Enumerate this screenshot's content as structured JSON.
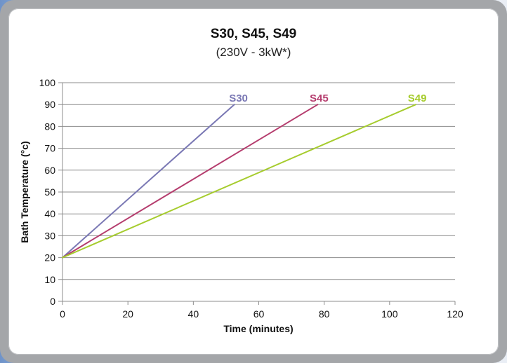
{
  "colors": {
    "frame": "#a4a6a9",
    "grid": "#8c8c8c",
    "s30": "#7a78b4",
    "s45": "#b53d6e",
    "s49": "#a6cc2e"
  },
  "chart_data": {
    "type": "line",
    "title": "S30, S45, S49",
    "subtitle": "(230V - 3kW*)",
    "xlabel": "Time (minutes)",
    "ylabel": "Bath Temperature (°c)",
    "xlim": [
      0,
      120
    ],
    "ylim": [
      0,
      100
    ],
    "x_ticks": [
      "0",
      "20",
      "40",
      "60",
      "80",
      "100",
      "120"
    ],
    "y_ticks": [
      "0",
      "10",
      "20",
      "30",
      "40",
      "50",
      "60",
      "70",
      "80",
      "90",
      "100"
    ],
    "grid": "horizontal",
    "legend": "inline labels at line ends",
    "series": [
      {
        "name": "S30",
        "color": "#7a78b4",
        "points": [
          [
            0,
            20
          ],
          [
            52.5,
            90
          ]
        ]
      },
      {
        "name": "S45",
        "color": "#b53d6e",
        "points": [
          [
            0,
            20
          ],
          [
            78,
            90
          ]
        ]
      },
      {
        "name": "S49",
        "color": "#a6cc2e",
        "points": [
          [
            0,
            20
          ],
          [
            108,
            90
          ]
        ]
      }
    ]
  }
}
